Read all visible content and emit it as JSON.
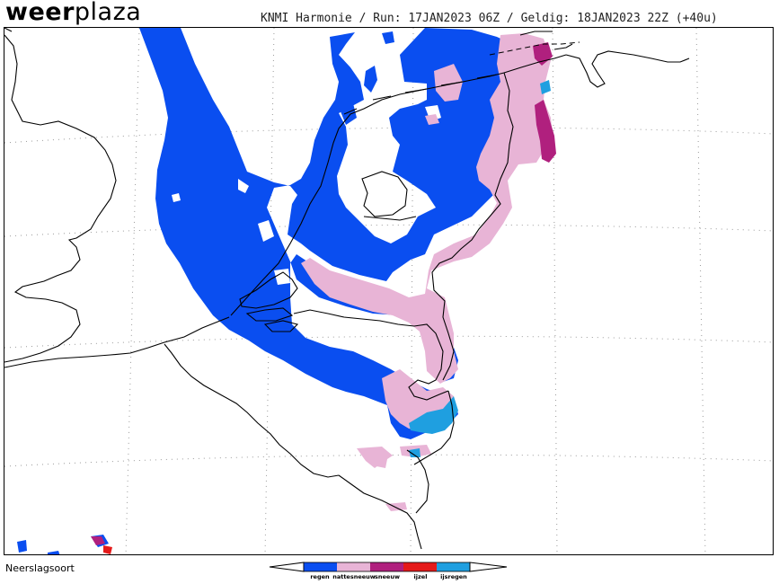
{
  "logo": {
    "bold": "weer",
    "light": "plaza"
  },
  "header_text": "KNMI Harmonie / Run: 17JAN2023 06Z / Geldig: 18JAN2023 22Z (+40u)",
  "footer_label": "Neerslagsoort",
  "legend": {
    "items": [
      {
        "label": "regen",
        "color": "#0a4ef0"
      },
      {
        "label": "nattesneeuw",
        "color": "#e8b4d6"
      },
      {
        "label": "sneeuw",
        "color": "#b0207e"
      },
      {
        "label": "ijzel",
        "color": "#e51a1a"
      },
      {
        "label": "ijsregen",
        "color": "#1f9fe0"
      }
    ]
  },
  "colors": {
    "rain": "#0a4ef0",
    "wet_snow": "#e8b4d6",
    "snow": "#b0207e",
    "freezing_rain": "#e51a1a",
    "ice_rain": "#1f9fe0",
    "borders": "#000000",
    "grid": "#9a9a9a"
  }
}
